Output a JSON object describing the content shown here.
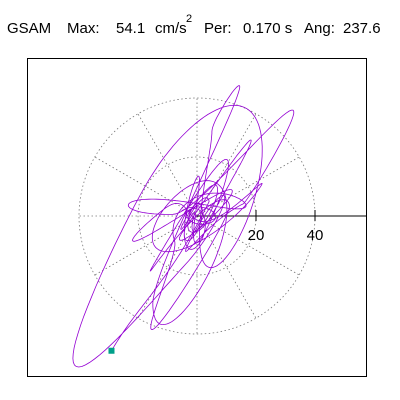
{
  "header": {
    "label": "GSAM",
    "max_label": "Max:",
    "max_value": "54.1",
    "max_unit": "cm/s",
    "max_unit_exponent": "2",
    "per_label": "Per:",
    "per_value": "0.170 s",
    "ang_label": "Ang:",
    "ang_value": "237.6"
  },
  "chart_data": {
    "type": "polar-orbit",
    "title": "GSAM",
    "max_amplitude": 54.1,
    "max_unit": "cm/s2",
    "period_s": 0.17,
    "peak_angle_deg": 237.6,
    "radial_ticks": [
      20,
      40
    ],
    "rings": [
      20,
      40
    ],
    "spokes_deg": [
      0,
      30,
      60,
      90,
      120,
      150,
      180,
      210,
      240,
      270,
      300,
      330
    ],
    "grid": true,
    "axis": "positive x-axis drawn solid, rings dotted",
    "trace_color": "#9400d3",
    "peak_marker_color": "#00a08a",
    "peak_marker": {
      "radius": 54.1,
      "angle_deg": 237.6
    }
  }
}
